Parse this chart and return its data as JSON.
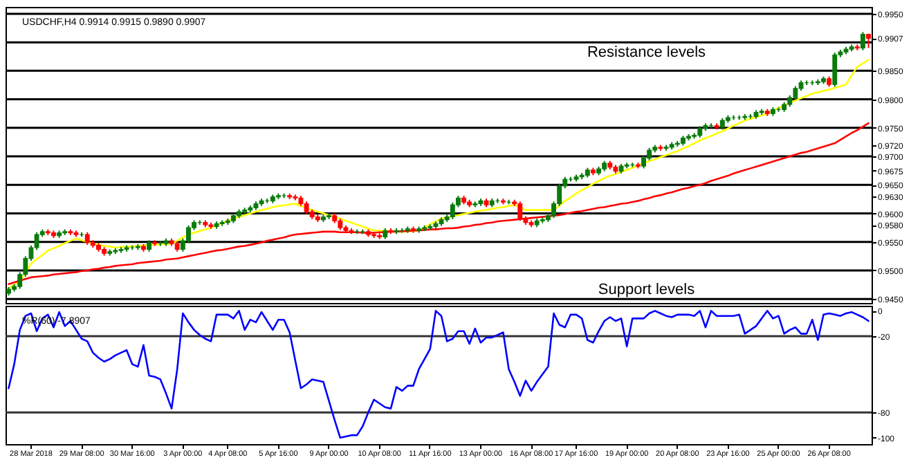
{
  "chart_data": [
    {
      "type": "candlestick",
      "title": "USDCHF,H4 0.9914 0.9915 0.9890 0.9907",
      "categories": [
        null,
        null,
        null,
        null,
        null,
        null,
        null,
        null,
        null,
        null,
        null,
        null,
        null,
        null,
        null,
        null,
        null,
        null,
        null,
        null,
        null,
        null,
        null,
        null,
        null,
        null,
        null,
        null,
        null,
        null,
        null,
        null,
        null,
        null,
        null,
        null,
        null,
        null,
        null,
        null,
        null,
        null,
        null,
        null,
        null,
        null,
        null,
        null,
        null,
        null,
        null,
        null,
        null,
        null,
        null,
        null,
        null,
        null,
        null,
        null,
        null,
        null,
        null,
        null,
        null,
        null,
        null,
        null,
        null,
        null,
        null,
        null,
        null,
        null,
        null,
        null,
        null,
        null,
        null,
        null,
        null,
        null,
        null,
        null,
        null,
        null,
        null,
        null,
        null,
        null,
        null,
        null,
        null,
        null,
        null,
        null,
        null,
        null,
        null,
        null,
        null,
        null,
        null,
        null,
        null,
        null,
        null,
        null,
        null,
        null,
        null,
        null,
        null,
        null,
        null,
        null,
        null,
        null,
        null,
        null,
        null,
        null,
        null,
        null,
        null,
        null,
        null,
        null,
        null,
        null,
        null,
        null,
        null,
        null,
        null,
        null,
        null,
        null,
        null,
        null,
        null,
        null,
        null,
        null,
        null,
        null,
        null,
        null,
        null,
        null,
        null,
        null,
        null,
        null
      ],
      "colors": [
        "#0a7a0a",
        "#0a7a0a",
        "#0a7a0a",
        "#0a7a0a",
        "#0a7a0a",
        "#0a7a0a",
        "#0a7a0a",
        "#ff0000",
        "#ff0000",
        "#0a7a0a",
        "#0a7a0a",
        "#ff0000",
        "#ff0000",
        "#0a7a0a",
        "#ff0000",
        "#ff0000",
        "#ff0000",
        "#ff0000",
        "#0a7a0a",
        "#0a7a0a",
        "#0a7a0a",
        "#0a7a0a",
        "#0a7a0a",
        "#0a7a0a",
        "#ff0000",
        "#0a7a0a",
        "#ff0000",
        "#0a7a0a",
        "#0a7a0a",
        "#ff0000",
        "#ff0000",
        "#0a7a0a",
        "#0a7a0a",
        "#0a7a0a",
        "#0a7a0a",
        "#ff0000",
        "#ff0000",
        "#0a7a0a",
        "#0a7a0a",
        "#0a7a0a",
        "#0a7a0a",
        "#0a7a0a",
        "#0a7a0a",
        "#0a7a0a",
        "#0a7a0a",
        "#0a7a0a",
        "#0a7a0a",
        "#0a7a0a",
        "#0a7a0a",
        "#0a7a0a",
        "#ff0000",
        "#ff0000",
        "#ff0000",
        "#ff0000",
        "#ff0000",
        "#ff0000",
        "#0a7a0a",
        "#0a7a0a",
        "#ff0000",
        "#ff0000",
        "#ff0000",
        "#ff0000",
        "#0a7a0a",
        "#0a7a0a",
        "#ff0000",
        "#ff0000",
        "#ff0000",
        "#0a7a0a",
        "#ff0000",
        "#0a7a0a",
        "#0a7a0a",
        "#0a7a0a",
        "#ff0000",
        "#0a7a0a",
        "#0a7a0a",
        "#0a7a0a",
        "#0a7a0a",
        "#0a7a0a",
        "#0a7a0a",
        "#0a7a0a",
        "#0a7a0a",
        "#ff0000",
        "#ff0000",
        "#0a7a0a",
        "#0a7a0a",
        "#ff0000",
        "#0a7a0a",
        "#0a7a0a",
        "#ff0000",
        "#0a7a0a",
        "#ff0000",
        "#ff0000",
        "#ff0000",
        "#ff0000",
        "#0a7a0a",
        "#0a7a0a",
        "#0a7a0a",
        "#0a7a0a",
        "#0a7a0a",
        "#0a7a0a",
        "#0a7a0a",
        "#0a7a0a",
        "#0a7a0a",
        "#0a7a0a",
        "#ff0000",
        "#0a7a0a",
        "#0a7a0a",
        "#ff0000",
        "#ff0000",
        "#0a7a0a",
        "#0a7a0a",
        "#0a7a0a",
        "#ff0000",
        "#0a7a0a",
        "#0a7a0a",
        "#0a7a0a",
        "#ff0000",
        "#0a7a0a",
        "#0a7a0a",
        "#0a7a0a",
        "#0a7a0a",
        "#0a7a0a",
        "#0a7a0a",
        "#0a7a0a",
        "#0a7a0a",
        "#0a7a0a",
        "#ff0000",
        "#0a7a0a",
        "#0a7a0a",
        "#0a7a0a",
        "#0a7a0a",
        "#0a7a0a",
        "#0a7a0a",
        "#0a7a0a",
        "#0a7a0a",
        "#ff0000",
        "#0a7a0a",
        "#0a7a0a",
        "#0a7a0a",
        "#0a7a0a",
        "#0a7a0a",
        "#0a7a0a",
        "#0a7a0a",
        "#0a7a0a",
        "#0a7a0a",
        "#0a7a0a",
        "#ff0000",
        "#0a7a0a",
        "#0a7a0a",
        "#0a7a0a",
        "#0a7a0a",
        "#ff0000",
        "#0a7a0a",
        "#ff0000"
      ],
      "ohlc": [
        [
          0.946,
          0.9471,
          0.9456,
          0.9467
        ],
        [
          0.9467,
          0.9476,
          0.9463,
          0.9472
        ],
        [
          0.9472,
          0.9497,
          0.9468,
          0.9493
        ],
        [
          0.9493,
          0.9525,
          0.9489,
          0.9521
        ],
        [
          0.9521,
          0.9544,
          0.9517,
          0.954
        ],
        [
          0.954,
          0.9567,
          0.9536,
          0.9563
        ],
        [
          0.9563,
          0.9572,
          0.9559,
          0.9568
        ],
        [
          0.9568,
          0.9572,
          0.9562,
          0.9566
        ],
        [
          0.9566,
          0.957,
          0.9557,
          0.9561
        ],
        [
          0.9561,
          0.957,
          0.9557,
          0.9566
        ],
        [
          0.9566,
          0.9572,
          0.9562,
          0.9568
        ],
        [
          0.9568,
          0.9572,
          0.9562,
          0.9566
        ],
        [
          0.9566,
          0.957,
          0.9559,
          0.9563
        ],
        [
          0.9563,
          0.9567,
          0.9559,
          0.9563
        ],
        [
          0.9563,
          0.9567,
          0.9545,
          0.9549
        ],
        [
          0.9549,
          0.9553,
          0.954,
          0.9544
        ],
        [
          0.9544,
          0.9548,
          0.9533,
          0.9537
        ],
        [
          0.9537,
          0.9541,
          0.9526,
          0.953
        ],
        [
          0.953,
          0.9537,
          0.9526,
          0.9533
        ],
        [
          0.9533,
          0.9539,
          0.9529,
          0.9535
        ],
        [
          0.9535,
          0.9541,
          0.9531,
          0.9537
        ],
        [
          0.9537,
          0.9544,
          0.9533,
          0.954
        ],
        [
          0.954,
          0.9544,
          0.9536,
          0.954
        ],
        [
          0.954,
          0.9546,
          0.9536,
          0.9542
        ],
        [
          0.9542,
          0.9546,
          0.9533,
          0.9537
        ],
        [
          0.9537,
          0.9553,
          0.9533,
          0.9549
        ],
        [
          0.9549,
          0.9553,
          0.9543,
          0.9547
        ],
        [
          0.9547,
          0.9551,
          0.9543,
          0.9547
        ],
        [
          0.9547,
          0.9556,
          0.9543,
          0.9552
        ],
        [
          0.9552,
          0.9556,
          0.9543,
          0.9547
        ],
        [
          0.9547,
          0.9551,
          0.9533,
          0.9537
        ],
        [
          0.9537,
          0.9556,
          0.9533,
          0.9552
        ],
        [
          0.9552,
          0.9579,
          0.9548,
          0.9575
        ],
        [
          0.9575,
          0.9588,
          0.9571,
          0.9584
        ],
        [
          0.9584,
          0.9588,
          0.958,
          0.9584
        ],
        [
          0.9584,
          0.9588,
          0.9576,
          0.958
        ],
        [
          0.958,
          0.9584,
          0.9573,
          0.9577
        ],
        [
          0.9577,
          0.9586,
          0.9573,
          0.9582
        ],
        [
          0.9582,
          0.9588,
          0.9578,
          0.9584
        ],
        [
          0.9584,
          0.9591,
          0.958,
          0.9587
        ],
        [
          0.9587,
          0.96,
          0.9583,
          0.9596
        ],
        [
          0.9596,
          0.9607,
          0.9592,
          0.9603
        ],
        [
          0.9603,
          0.961,
          0.9599,
          0.9606
        ],
        [
          0.9606,
          0.9614,
          0.9602,
          0.961
        ],
        [
          0.961,
          0.9621,
          0.9606,
          0.9617
        ],
        [
          0.9617,
          0.9626,
          0.9613,
          0.9622
        ],
        [
          0.9622,
          0.9626,
          0.9618,
          0.9622
        ],
        [
          0.9622,
          0.9633,
          0.9618,
          0.9629
        ],
        [
          0.9629,
          0.9635,
          0.9625,
          0.9631
        ],
        [
          0.9631,
          0.9635,
          0.9627,
          0.9631
        ],
        [
          0.9631,
          0.9635,
          0.9625,
          0.9629
        ],
        [
          0.9629,
          0.9633,
          0.9623,
          0.9627
        ],
        [
          0.9627,
          0.9631,
          0.9613,
          0.9617
        ],
        [
          0.9617,
          0.9621,
          0.9599,
          0.9603
        ],
        [
          0.9603,
          0.9607,
          0.959,
          0.9594
        ],
        [
          0.9594,
          0.9598,
          0.9585,
          0.9589
        ],
        [
          0.9589,
          0.9598,
          0.9585,
          0.9594
        ],
        [
          0.9594,
          0.96,
          0.959,
          0.9596
        ],
        [
          0.9596,
          0.96,
          0.9583,
          0.9587
        ],
        [
          0.9587,
          0.9591,
          0.9571,
          0.9575
        ],
        [
          0.9575,
          0.9579,
          0.9566,
          0.957
        ],
        [
          0.957,
          0.9574,
          0.9564,
          0.9568
        ],
        [
          0.9568,
          0.9572,
          0.9564,
          0.9568
        ],
        [
          0.9568,
          0.9572,
          0.9564,
          0.9568
        ],
        [
          0.9568,
          0.9572,
          0.9559,
          0.9563
        ],
        [
          0.9563,
          0.9567,
          0.9557,
          0.9561
        ],
        [
          0.9561,
          0.9565,
          0.9555,
          0.9559
        ],
        [
          0.9559,
          0.9574,
          0.9555,
          0.957
        ],
        [
          0.957,
          0.9574,
          0.9564,
          0.9568
        ],
        [
          0.9568,
          0.9574,
          0.9564,
          0.957
        ],
        [
          0.957,
          0.9574,
          0.9566,
          0.957
        ],
        [
          0.957,
          0.9577,
          0.9566,
          0.9573
        ],
        [
          0.9573,
          0.9577,
          0.9566,
          0.957
        ],
        [
          0.957,
          0.9577,
          0.9566,
          0.9573
        ],
        [
          0.9573,
          0.9579,
          0.9569,
          0.9575
        ],
        [
          0.9575,
          0.9581,
          0.9571,
          0.9577
        ],
        [
          0.9577,
          0.9586,
          0.9573,
          0.9582
        ],
        [
          0.9582,
          0.9593,
          0.9578,
          0.9589
        ],
        [
          0.9589,
          0.9598,
          0.9585,
          0.9594
        ],
        [
          0.9594,
          0.9619,
          0.959,
          0.9615
        ],
        [
          0.9615,
          0.9631,
          0.9611,
          0.9627
        ],
        [
          0.9627,
          0.9631,
          0.9616,
          0.962
        ],
        [
          0.962,
          0.9624,
          0.9611,
          0.9615
        ],
        [
          0.9615,
          0.9621,
          0.9611,
          0.9617
        ],
        [
          0.9617,
          0.9626,
          0.9613,
          0.9622
        ],
        [
          0.9622,
          0.9626,
          0.9611,
          0.9615
        ],
        [
          0.9615,
          0.9626,
          0.9611,
          0.9622
        ],
        [
          0.9622,
          0.9626,
          0.9618,
          0.9622
        ],
        [
          0.9622,
          0.9626,
          0.9616,
          0.962
        ],
        [
          0.962,
          0.9624,
          0.9616,
          0.962
        ],
        [
          0.962,
          0.9624,
          0.9613,
          0.9617
        ],
        [
          0.9617,
          0.9621,
          0.9587,
          0.9591
        ],
        [
          0.9591,
          0.9595,
          0.958,
          0.9584
        ],
        [
          0.9584,
          0.9588,
          0.9576,
          0.958
        ],
        [
          0.958,
          0.9591,
          0.9576,
          0.9587
        ],
        [
          0.9587,
          0.9593,
          0.9583,
          0.9589
        ],
        [
          0.9589,
          0.96,
          0.9585,
          0.9596
        ],
        [
          0.9596,
          0.9621,
          0.9592,
          0.9617
        ],
        [
          0.9617,
          0.9652,
          0.9613,
          0.9648
        ],
        [
          0.9648,
          0.9664,
          0.9644,
          0.966
        ],
        [
          0.966,
          0.9664,
          0.9656,
          0.966
        ],
        [
          0.966,
          0.9668,
          0.9656,
          0.9664
        ],
        [
          0.9664,
          0.9671,
          0.966,
          0.9667
        ],
        [
          0.9667,
          0.968,
          0.9663,
          0.9676
        ],
        [
          0.9676,
          0.968,
          0.9667,
          0.9671
        ],
        [
          0.9671,
          0.9682,
          0.9667,
          0.9678
        ],
        [
          0.9678,
          0.9692,
          0.9674,
          0.9688
        ],
        [
          0.9688,
          0.9692,
          0.9677,
          0.9681
        ],
        [
          0.9681,
          0.9685,
          0.967,
          0.9674
        ],
        [
          0.9674,
          0.9687,
          0.967,
          0.9683
        ],
        [
          0.9683,
          0.9689,
          0.9679,
          0.9685
        ],
        [
          0.9685,
          0.9689,
          0.9681,
          0.9685
        ],
        [
          0.9685,
          0.9689,
          0.9679,
          0.9683
        ],
        [
          0.9683,
          0.9701,
          0.9679,
          0.9697
        ],
        [
          0.9697,
          0.9715,
          0.9693,
          0.9711
        ],
        [
          0.9711,
          0.972,
          0.9707,
          0.9716
        ],
        [
          0.9716,
          0.972,
          0.971,
          0.9714
        ],
        [
          0.9714,
          0.972,
          0.971,
          0.9716
        ],
        [
          0.9716,
          0.9725,
          0.9712,
          0.9721
        ],
        [
          0.9721,
          0.9727,
          0.9717,
          0.9723
        ],
        [
          0.9723,
          0.9736,
          0.9719,
          0.9732
        ],
        [
          0.9732,
          0.9739,
          0.9728,
          0.9735
        ],
        [
          0.9735,
          0.9741,
          0.9731,
          0.9737
        ],
        [
          0.9737,
          0.9753,
          0.9733,
          0.9749
        ],
        [
          0.9749,
          0.9758,
          0.9745,
          0.9754
        ],
        [
          0.9754,
          0.9758,
          0.975,
          0.9754
        ],
        [
          0.9754,
          0.9758,
          0.9747,
          0.9751
        ],
        [
          0.9751,
          0.9767,
          0.9747,
          0.9763
        ],
        [
          0.9763,
          0.9772,
          0.9759,
          0.9768
        ],
        [
          0.9768,
          0.9772,
          0.9764,
          0.9768
        ],
        [
          0.9768,
          0.9772,
          0.9764,
          0.9768
        ],
        [
          0.9768,
          0.9774,
          0.9764,
          0.977
        ],
        [
          0.977,
          0.9774,
          0.9766,
          0.977
        ],
        [
          0.977,
          0.9781,
          0.9766,
          0.9777
        ],
        [
          0.9777,
          0.9783,
          0.9773,
          0.9779
        ],
        [
          0.9779,
          0.9783,
          0.9771,
          0.9775
        ],
        [
          0.9775,
          0.9786,
          0.9771,
          0.9782
        ],
        [
          0.9782,
          0.9786,
          0.9778,
          0.9782
        ],
        [
          0.9782,
          0.9795,
          0.9778,
          0.9791
        ],
        [
          0.9791,
          0.9807,
          0.9787,
          0.9803
        ],
        [
          0.9803,
          0.9823,
          0.9799,
          0.9819
        ],
        [
          0.9819,
          0.9833,
          0.9815,
          0.9829
        ],
        [
          0.9829,
          0.9833,
          0.9825,
          0.9829
        ],
        [
          0.9829,
          0.9833,
          0.9825,
          0.9829
        ],
        [
          0.9829,
          0.9835,
          0.9825,
          0.9831
        ],
        [
          0.9831,
          0.984,
          0.9827,
          0.9836
        ],
        [
          0.9836,
          0.984,
          0.9822,
          0.9826
        ],
        [
          0.9826,
          0.9882,
          0.9822,
          0.9878
        ],
        [
          0.9878,
          0.9887,
          0.9874,
          0.9883
        ],
        [
          0.9883,
          0.9892,
          0.9879,
          0.9888
        ],
        [
          0.9888,
          0.9896,
          0.9884,
          0.9892
        ],
        [
          0.9892,
          0.9896,
          0.9886,
          0.989
        ],
        [
          0.989,
          0.9918,
          0.9886,
          0.9914
        ],
        [
          0.9914,
          0.9915,
          0.989,
          0.9907
        ]
      ],
      "series": [
        {
          "type": "line",
          "color": "#ffff00",
          "values": [
            0.9469,
            0.9475,
            0.9481,
            0.9497,
            0.9512,
            0.952,
            0.9527,
            0.9535,
            0.9539,
            0.9543,
            0.9548,
            0.9552,
            0.9556,
            0.9553,
            0.955,
            0.9547,
            0.9545,
            0.9543,
            0.9542,
            0.954,
            0.9541,
            0.9542,
            0.9542,
            0.9543,
            0.9544,
            0.9545,
            0.9545,
            0.9546,
            0.9546,
            0.9547,
            0.9552,
            0.9558,
            0.9563,
            0.9566,
            0.9569,
            0.9572,
            0.9575,
            0.9579,
            0.9583,
            0.9587,
            0.9591,
            0.9594,
            0.9597,
            0.96,
            0.9603,
            0.9606,
            0.9608,
            0.9611,
            0.9613,
            0.9614,
            0.9616,
            0.9617,
            0.9613,
            0.961,
            0.9606,
            0.9603,
            0.96,
            0.9597,
            0.9594,
            0.9591,
            0.9587,
            0.9584,
            0.958,
            0.9577,
            0.9573,
            0.957,
            0.957,
            0.9569,
            0.9569,
            0.9568,
            0.9568,
            0.9569,
            0.9569,
            0.957,
            0.9575,
            0.9581,
            0.9586,
            0.9591,
            0.9593,
            0.9595,
            0.9597,
            0.9599,
            0.9601,
            0.9603,
            0.9605,
            0.9606,
            0.9608,
            0.961,
            0.9611,
            0.9613,
            0.9615,
            0.9611,
            0.9606,
            0.9606,
            0.9606,
            0.9606,
            0.9606,
            0.9606,
            0.9614,
            0.9622,
            0.9628,
            0.9635,
            0.9641,
            0.9646,
            0.9652,
            0.9657,
            0.9662,
            0.9666,
            0.9669,
            0.9673,
            0.9676,
            0.968,
            0.9684,
            0.9688,
            0.9692,
            0.9695,
            0.9699,
            0.9702,
            0.9706,
            0.9709,
            0.9714,
            0.9718,
            0.9723,
            0.9728,
            0.9732,
            0.9736,
            0.974,
            0.9744,
            0.9749,
            0.9754,
            0.9758,
            0.9763,
            0.9766,
            0.9769,
            0.9772,
            0.9775,
            0.978,
            0.9785,
            0.9789,
            0.9794,
            0.9798,
            0.9802,
            0.9806,
            0.981,
            0.9812,
            0.9815,
            0.9817,
            0.982,
            0.9823,
            0.9826,
            0.9842,
            0.9857,
            0.9863,
            0.9869
          ]
        },
        {
          "type": "line",
          "color": "#ff0000",
          "values": [
            0.9476,
            0.9479,
            0.9482,
            0.9485,
            0.9488,
            0.9489,
            0.949,
            0.9491,
            0.9493,
            0.9494,
            0.9495,
            0.9496,
            0.9497,
            0.9499,
            0.95,
            0.9502,
            0.9503,
            0.9505,
            0.9506,
            0.9508,
            0.9509,
            0.951,
            0.9511,
            0.9513,
            0.9514,
            0.9515,
            0.9516,
            0.9517,
            0.9519,
            0.952,
            0.9521,
            0.9523,
            0.9525,
            0.9527,
            0.9529,
            0.9531,
            0.9533,
            0.9535,
            0.9536,
            0.9538,
            0.954,
            0.9542,
            0.9543,
            0.9545,
            0.9547,
            0.9549,
            0.9552,
            0.9554,
            0.9556,
            0.9558,
            0.9561,
            0.9563,
            0.9564,
            0.9565,
            0.9566,
            0.9567,
            0.9568,
            0.9568,
            0.9568,
            0.9567,
            0.9567,
            0.9567,
            0.9567,
            0.9566,
            0.9566,
            0.9566,
            0.9567,
            0.9567,
            0.9568,
            0.9568,
            0.9569,
            0.9569,
            0.957,
            0.957,
            0.9571,
            0.9572,
            0.9572,
            0.9573,
            0.9574,
            0.9574,
            0.9575,
            0.9577,
            0.9578,
            0.958,
            0.9581,
            0.9583,
            0.9584,
            0.9586,
            0.9587,
            0.9588,
            0.9589,
            0.959,
            0.9591,
            0.9592,
            0.9593,
            0.9594,
            0.9595,
            0.9596,
            0.9597,
            0.9599,
            0.9601,
            0.9603,
            0.9604,
            0.9606,
            0.9608,
            0.961,
            0.9611,
            0.9613,
            0.9615,
            0.9617,
            0.9618,
            0.962,
            0.9622,
            0.9625,
            0.9627,
            0.963,
            0.9632,
            0.9635,
            0.9637,
            0.964,
            0.9643,
            0.9645,
            0.9648,
            0.965,
            0.9653,
            0.9657,
            0.966,
            0.9663,
            0.9666,
            0.967,
            0.9673,
            0.9676,
            0.9679,
            0.9682,
            0.9685,
            0.9688,
            0.9691,
            0.9694,
            0.9697,
            0.97,
            0.9703,
            0.9706,
            0.9708,
            0.9711,
            0.9714,
            0.9717,
            0.972,
            0.9723,
            0.9729,
            0.9735,
            0.9741,
            0.9746,
            0.9752,
            0.9758
          ]
        }
      ],
      "ylim": [
        0.9443,
        0.9962
      ],
      "yticks": [
        {
          "value": 0.945,
          "label": "0.9450"
        },
        {
          "value": 0.95,
          "label": "0.9500"
        },
        {
          "value": 0.955,
          "label": "0.9550"
        },
        {
          "value": 0.958,
          "label": "0.9580"
        },
        {
          "value": 0.96,
          "label": "0.9600"
        },
        {
          "value": 0.963,
          "label": "0.9630"
        },
        {
          "value": 0.965,
          "label": "0.9650"
        },
        {
          "value": 0.9675,
          "label": "0.9675"
        },
        {
          "value": 0.97,
          "label": "0.9700"
        },
        {
          "value": 0.972,
          "label": "0.9720"
        },
        {
          "value": 0.975,
          "label": "0.9750"
        },
        {
          "value": 0.98,
          "label": "0.9800"
        },
        {
          "value": 0.985,
          "label": "0.9850"
        },
        {
          "value": 0.9907,
          "label": "0.9907"
        },
        {
          "value": 0.995,
          "label": "0.9950"
        }
      ],
      "tick_labels": "y",
      "ref_lines": [
        {
          "axis": "y",
          "value": 0.945,
          "color": "#000000"
        },
        {
          "axis": "y",
          "value": 0.95,
          "color": "#000000"
        },
        {
          "axis": "y",
          "value": 0.955,
          "color": "#000000"
        },
        {
          "axis": "y",
          "value": 0.96,
          "color": "#000000"
        },
        {
          "axis": "y",
          "value": 0.965,
          "color": "#000000"
        },
        {
          "axis": "y",
          "value": 0.97,
          "color": "#000000"
        },
        {
          "axis": "y",
          "value": 0.975,
          "color": "#000000"
        },
        {
          "axis": "y",
          "value": 0.98,
          "color": "#000000"
        },
        {
          "axis": "y",
          "value": 0.985,
          "color": "#000000"
        },
        {
          "axis": "y",
          "value": 0.99,
          "color": "#000000"
        },
        {
          "axis": "y",
          "value": 0.995,
          "color": "#000000"
        }
      ],
      "annotations": [
        "Resistance levels",
        "Support levels"
      ]
    },
    {
      "type": "line",
      "title": "%R(60) -7.8907",
      "categories": [
        null,
        null,
        null,
        null,
        "28 Mar 2018",
        null,
        null,
        null,
        null,
        null,
        null,
        null,
        null,
        "29 Mar 08:00",
        null,
        null,
        null,
        null,
        null,
        null,
        null,
        null,
        "30 Mar 16:00",
        null,
        null,
        null,
        null,
        null,
        null,
        null,
        null,
        "3 Apr 00:00",
        null,
        null,
        null,
        null,
        null,
        null,
        null,
        "4 Apr 08:00",
        null,
        null,
        null,
        null,
        null,
        null,
        null,
        null,
        "5 Apr 16:00",
        null,
        null,
        null,
        null,
        null,
        null,
        null,
        null,
        "9 Apr 00:00",
        null,
        null,
        null,
        null,
        null,
        null,
        null,
        null,
        "10 Apr 08:00",
        null,
        null,
        null,
        null,
        null,
        null,
        null,
        null,
        "11 Apr 16:00",
        null,
        null,
        null,
        null,
        null,
        null,
        null,
        null,
        "13 Apr 00:00",
        null,
        null,
        null,
        null,
        null,
        null,
        null,
        null,
        "16 Apr 08:00",
        null,
        null,
        null,
        null,
        null,
        null,
        null,
        "17 Apr 16:00",
        null,
        null,
        null,
        null,
        null,
        null,
        null,
        null,
        "19 Apr 00:00",
        null,
        null,
        null,
        null,
        null,
        null,
        null,
        null,
        "20 Apr 08:00",
        null,
        null,
        null,
        null,
        null,
        null,
        null,
        null,
        "23 Apr 16:00",
        null,
        null,
        null,
        null,
        null,
        null,
        null,
        null,
        "25 Apr 00:00",
        null,
        null,
        null,
        null,
        null,
        null,
        null,
        null,
        "26 Apr 08:00",
        null,
        null,
        null,
        null,
        null,
        null,
        null
      ],
      "series": [
        {
          "color": "#0000ff",
          "values": [
            -61,
            -42,
            -15,
            -4,
            -2,
            -16,
            -6,
            -3,
            -13,
            -1,
            -12,
            -8,
            -15,
            -22,
            -24,
            -33,
            -37,
            -40,
            -38,
            -35,
            -33,
            -31,
            -42,
            -44,
            -27,
            -51,
            -52,
            -54,
            -65,
            -77,
            -46,
            -2,
            -9,
            -15,
            -19,
            -22,
            -24,
            -3,
            -3,
            -3,
            -6,
            0,
            -15,
            -7,
            -9,
            -1,
            -8,
            -15,
            -7,
            -7,
            -17,
            -39,
            -61,
            -58,
            -54,
            -55,
            -56,
            -71,
            -86,
            -100,
            -99,
            -98,
            -98,
            -91,
            -80,
            -70,
            -73,
            -76,
            -77,
            -60,
            -63,
            -59,
            -59,
            -46,
            -38,
            -30,
            0,
            -4,
            -24,
            -22,
            -16,
            -16,
            -26,
            -14,
            -25,
            -21,
            -21,
            -19,
            -17,
            -46,
            -56,
            -67,
            -55,
            -63,
            -56,
            -50,
            -44,
            -2,
            -11,
            -13,
            -3,
            -3,
            -6,
            -23,
            -25,
            -16,
            -8,
            -5,
            -8,
            -6,
            -28,
            -6,
            -6,
            -6,
            -2,
            0,
            -2,
            -4,
            -5,
            -3,
            -3,
            -3,
            -4,
            0,
            -13,
            0,
            -4,
            -4,
            -4,
            -4,
            -3,
            -18,
            -15,
            -12,
            -6,
            0,
            -6,
            -4,
            -18,
            -15,
            -13,
            -18,
            -18,
            -7,
            -23,
            -3,
            -2,
            -3,
            -4,
            -2,
            -1,
            -3,
            -5,
            -8
          ]
        }
      ],
      "ylim": [
        -105,
        4
      ],
      "yticks": [
        0,
        -20,
        -80,
        -100
      ],
      "ref_lines": [
        {
          "axis": "y",
          "value": -20,
          "color": "#333333"
        },
        {
          "axis": "y",
          "value": -80,
          "color": "#333333"
        }
      ]
    }
  ]
}
